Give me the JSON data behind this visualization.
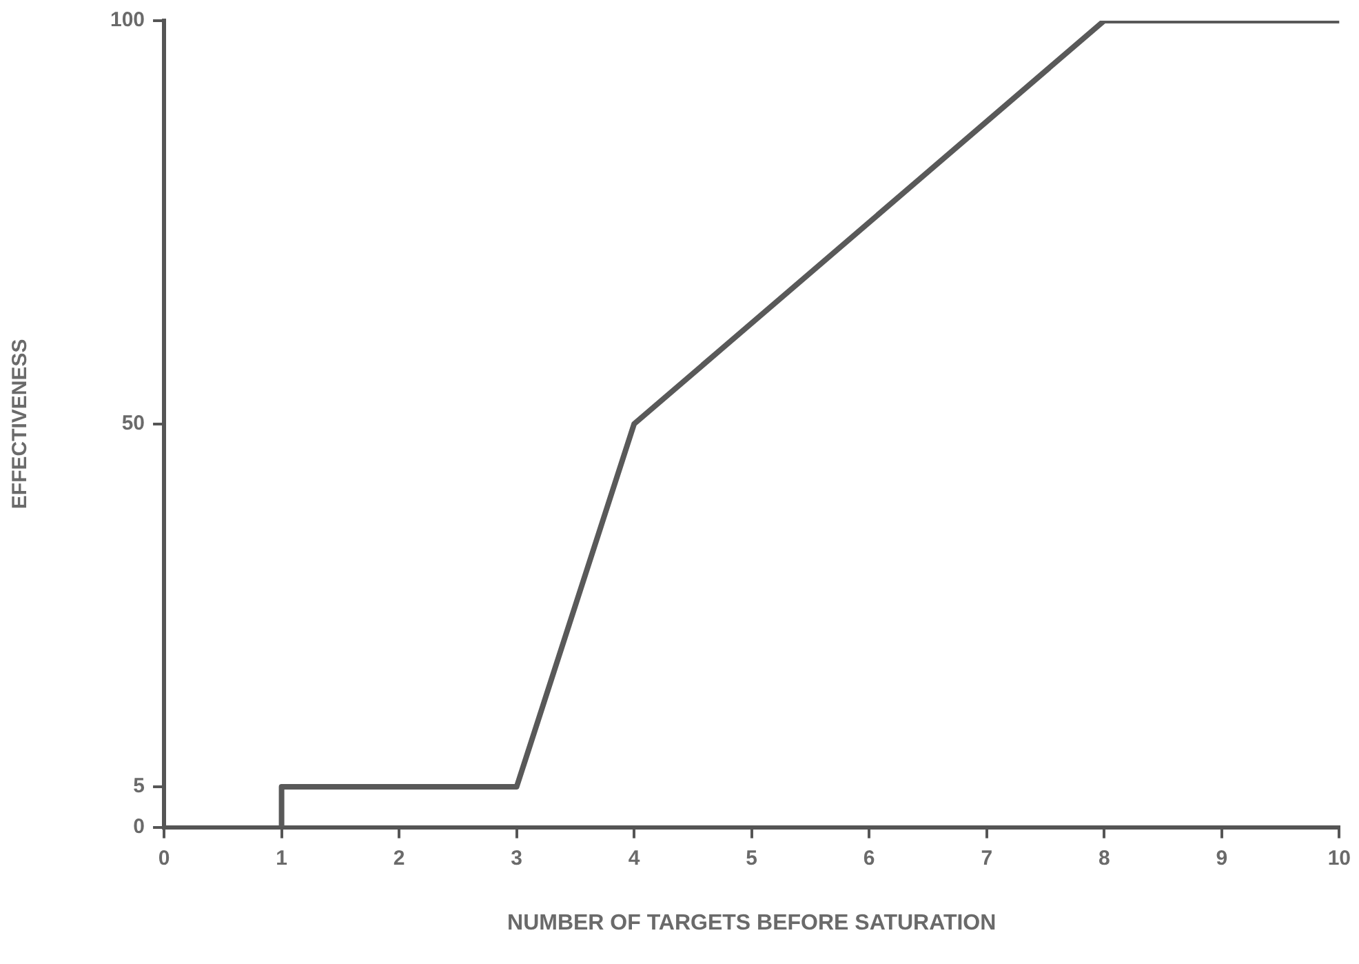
{
  "chart_data": {
    "type": "line",
    "xlabel": "NUMBER OF TARGETS BEFORE SATURATION",
    "ylabel": "EFFECTIVENESS",
    "x": [
      1,
      1,
      3,
      4,
      8,
      10
    ],
    "series": [
      {
        "color": "#595959",
        "values": [
          0,
          5,
          5,
          50,
          100,
          100
        ]
      }
    ],
    "xlim": [
      0,
      10
    ],
    "xticks": [
      0,
      1,
      2,
      3,
      4,
      5,
      6,
      7,
      8,
      9,
      10
    ],
    "ylim": [
      0,
      100
    ],
    "yticks": [
      0,
      5,
      50,
      100
    ],
    "grid": false,
    "legend": false,
    "marker": "none",
    "line_style": "solid"
  }
}
